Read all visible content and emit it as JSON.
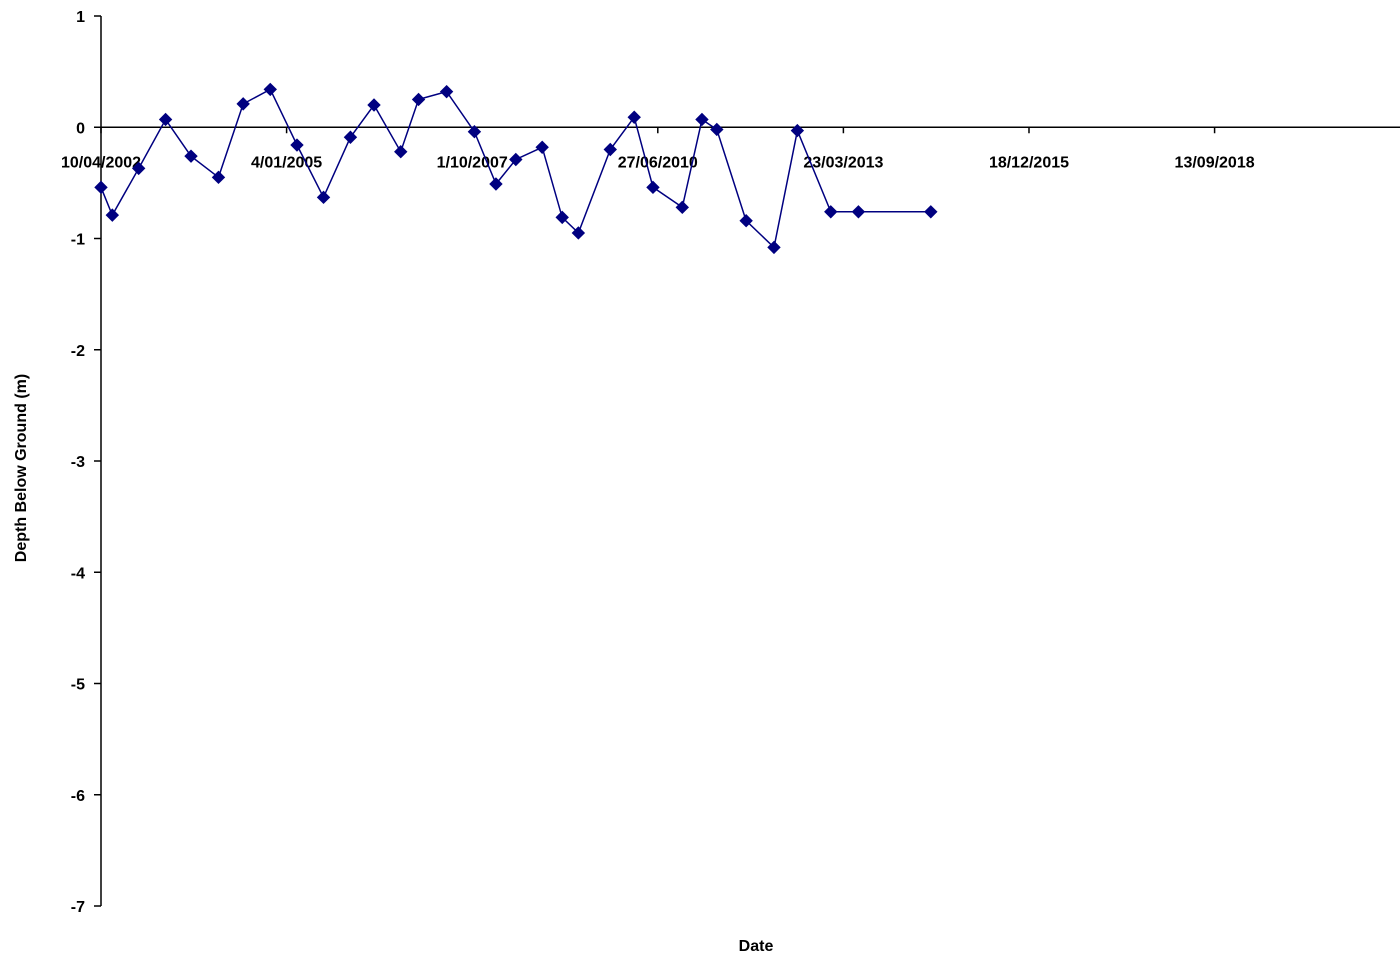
{
  "chart_data": {
    "type": "line",
    "title": "",
    "xlabel": "Date",
    "ylabel": "Depth Below Ground (m)",
    "ylim": [
      -7,
      1
    ],
    "xlim": [
      "2002-04-10",
      "2021-06-08"
    ],
    "y_ticks": [
      1,
      0,
      -1,
      -2,
      -3,
      -4,
      -5,
      -6,
      -7
    ],
    "y_tick_labels": [
      "1",
      "0",
      "-1",
      "-2",
      "-3",
      "-4",
      "-5",
      "-6",
      "-7"
    ],
    "x_ticks": [
      "2002-04-10",
      "2005-01-04",
      "2007-10-01",
      "2010-06-27",
      "2013-03-23",
      "2015-12-18",
      "2018-09-13"
    ],
    "x_tick_labels": [
      "10/04/2002",
      "4/01/2005",
      "1/10/2007",
      "27/06/2010",
      "23/03/2013",
      "18/12/2015",
      "13/09/2018"
    ],
    "x_axis_crosses_y_at": 0,
    "grid": false,
    "legend": "none",
    "series": [
      {
        "color": "#000080",
        "marker": "diamond",
        "x": [
          "2002-04-10",
          "2002-06-10",
          "2002-10-30",
          "2003-03-24",
          "2003-08-08",
          "2004-01-03",
          "2004-05-15",
          "2004-10-08",
          "2005-03-01",
          "2005-07-22",
          "2005-12-14",
          "2006-04-20",
          "2006-09-11",
          "2006-12-16",
          "2007-05-16",
          "2007-10-13",
          "2008-02-06",
          "2008-05-23",
          "2008-10-12",
          "2009-01-28",
          "2009-04-25",
          "2009-10-14",
          "2010-02-20",
          "2010-06-01",
          "2010-11-06",
          "2011-02-20",
          "2011-05-11",
          "2011-10-16",
          "2012-03-14",
          "2012-07-18",
          "2013-01-14",
          "2013-06-12",
          "2014-07-07"
        ],
        "y": [
          -0.54,
          -0.79,
          -0.37,
          0.07,
          -0.26,
          -0.45,
          0.21,
          0.34,
          -0.16,
          -0.63,
          -0.09,
          0.2,
          -0.22,
          0.25,
          0.32,
          -0.04,
          -0.51,
          -0.29,
          -0.18,
          -0.81,
          -0.95,
          -0.2,
          0.09,
          -0.54,
          -0.72,
          0.07,
          -0.02,
          -0.84,
          -1.08,
          -0.03,
          -0.76,
          -0.76,
          -0.76
        ]
      }
    ]
  }
}
